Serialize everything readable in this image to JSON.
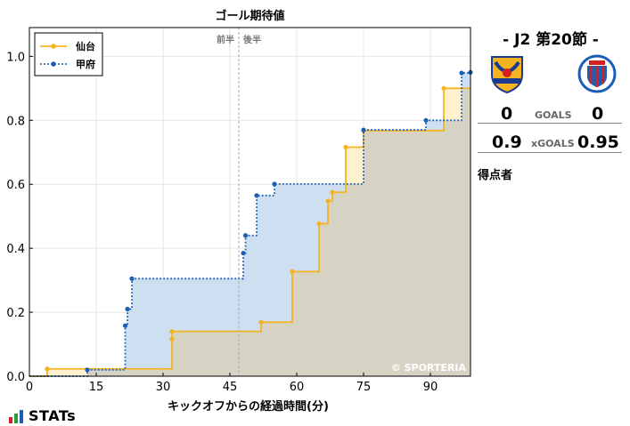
{
  "chart_data": {
    "type": "line",
    "step": true,
    "title": "ゴール期待値",
    "xlabel": "キックオフからの経過時間(分)",
    "ylabel": "",
    "xlim": [
      0,
      99
    ],
    "ylim": [
      0,
      1.09
    ],
    "xticks": [
      0,
      15,
      30,
      45,
      60,
      75,
      90
    ],
    "yticks": [
      0.0,
      0.2,
      0.4,
      0.6,
      0.8,
      1.0
    ],
    "tick_labels_x": [
      "0",
      "15",
      "30",
      "45",
      "60",
      "75",
      "90"
    ],
    "tick_labels_y": [
      "0.0",
      "0.2",
      "0.4",
      "0.6",
      "0.8",
      "1.0"
    ],
    "halftime_minute": 47,
    "half_labels": [
      "前半",
      "後半"
    ],
    "grid": true,
    "legend": "top-left",
    "watermark": "© SPORTERIA",
    "series": [
      {
        "name": "仙台",
        "color": "#f5b320",
        "fill": "#fdefc8",
        "style": "solid",
        "points": [
          [
            4,
            0.023
          ],
          [
            32,
            0.116
          ],
          [
            32,
            0.14
          ],
          [
            52,
            0.169
          ],
          [
            59,
            0.327
          ],
          [
            65,
            0.477
          ],
          [
            67,
            0.548
          ],
          [
            68,
            0.575
          ],
          [
            71,
            0.716
          ],
          [
            75,
            0.768
          ],
          [
            93,
            0.9
          ]
        ]
      },
      {
        "name": "甲府",
        "color": "#1a5fb4",
        "fill": "#c5d9ee",
        "style": "dotted",
        "points": [
          [
            13,
            0.02
          ],
          [
            21.5,
            0.158
          ],
          [
            22,
            0.21
          ],
          [
            23,
            0.305
          ],
          [
            48,
            0.385
          ],
          [
            48.5,
            0.44
          ],
          [
            51,
            0.565
          ],
          [
            55,
            0.601
          ],
          [
            75,
            0.77
          ],
          [
            89,
            0.8
          ],
          [
            97,
            0.948
          ],
          [
            99,
            0.95
          ]
        ]
      }
    ]
  },
  "match": {
    "title": "- J2 第20節 -",
    "goals_label": "GOALS",
    "xgoals_label": "xGOALS",
    "home": {
      "name": "仙台",
      "goals": "0",
      "xg": "0.9",
      "color": "#f5b320"
    },
    "away": {
      "name": "甲府",
      "goals": "0",
      "xg": "0.95",
      "color": "#1a5fb4"
    },
    "scorers_label": "得点者"
  },
  "branding": {
    "logo_text": "STATs"
  }
}
